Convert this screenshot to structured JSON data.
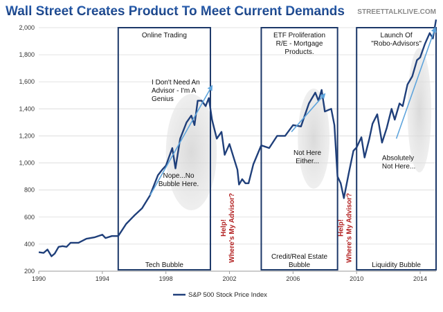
{
  "chart_data": {
    "type": "line",
    "title": "Wall Street Creates Product To Meet Current Demands",
    "source": "STREETTALKLIVE.COM",
    "legend": "S&P 500 Stock Price Index",
    "legend_position": "bottom",
    "grid": "horizontal",
    "xlim": [
      1990.0,
      2015.0
    ],
    "ylim": [
      200,
      2000
    ],
    "x_ticks": [
      1990,
      1994,
      1998,
      2002,
      2006,
      2010,
      2014
    ],
    "y_ticks": [
      200,
      400,
      600,
      800,
      1000,
      1200,
      1400,
      1600,
      1800,
      2000
    ],
    "y_tick_labels": [
      "200",
      "400",
      "600",
      "800",
      "1,000",
      "1,200",
      "1,400",
      "1,600",
      "1,800",
      "2,000"
    ],
    "series": [
      {
        "name": "S&P 500 Stock Price Index",
        "color": "#1f3f7a",
        "points": [
          [
            1990.0,
            340
          ],
          [
            1990.3,
            335
          ],
          [
            1990.55,
            360
          ],
          [
            1990.8,
            310
          ],
          [
            1991.0,
            330
          ],
          [
            1991.25,
            380
          ],
          [
            1991.5,
            385
          ],
          [
            1991.75,
            380
          ],
          [
            1992.0,
            410
          ],
          [
            1992.5,
            410
          ],
          [
            1993.0,
            440
          ],
          [
            1993.5,
            450
          ],
          [
            1994.0,
            470
          ],
          [
            1994.2,
            445
          ],
          [
            1994.6,
            460
          ],
          [
            1995.0,
            460
          ],
          [
            1995.5,
            550
          ],
          [
            1996.0,
            610
          ],
          [
            1996.5,
            665
          ],
          [
            1997.0,
            760
          ],
          [
            1997.5,
            910
          ],
          [
            1997.8,
            955
          ],
          [
            1998.0,
            980
          ],
          [
            1998.4,
            1110
          ],
          [
            1998.6,
            960
          ],
          [
            1998.9,
            1180
          ],
          [
            1999.3,
            1300
          ],
          [
            1999.6,
            1350
          ],
          [
            1999.8,
            1280
          ],
          [
            2000.0,
            1460
          ],
          [
            2000.25,
            1460
          ],
          [
            2000.5,
            1420
          ],
          [
            2000.7,
            1480
          ],
          [
            2000.9,
            1320
          ],
          [
            2001.2,
            1180
          ],
          [
            2001.5,
            1230
          ],
          [
            2001.7,
            1060
          ],
          [
            2002.0,
            1140
          ],
          [
            2002.5,
            950
          ],
          [
            2002.6,
            840
          ],
          [
            2002.8,
            880
          ],
          [
            2003.0,
            850
          ],
          [
            2003.2,
            850
          ],
          [
            2003.5,
            990
          ],
          [
            2004.0,
            1130
          ],
          [
            2004.5,
            1110
          ],
          [
            2005.0,
            1200
          ],
          [
            2005.5,
            1200
          ],
          [
            2006.0,
            1280
          ],
          [
            2006.5,
            1270
          ],
          [
            2007.0,
            1440
          ],
          [
            2007.4,
            1520
          ],
          [
            2007.6,
            1460
          ],
          [
            2007.8,
            1540
          ],
          [
            2008.0,
            1380
          ],
          [
            2008.4,
            1400
          ],
          [
            2008.6,
            1280
          ],
          [
            2008.8,
            900
          ],
          [
            2009.0,
            850
          ],
          [
            2009.2,
            740
          ],
          [
            2009.5,
            920
          ],
          [
            2009.8,
            1090
          ],
          [
            2010.0,
            1115
          ],
          [
            2010.3,
            1190
          ],
          [
            2010.5,
            1040
          ],
          [
            2010.8,
            1180
          ],
          [
            2011.0,
            1290
          ],
          [
            2011.3,
            1360
          ],
          [
            2011.6,
            1150
          ],
          [
            2011.9,
            1260
          ],
          [
            2012.2,
            1400
          ],
          [
            2012.4,
            1320
          ],
          [
            2012.7,
            1440
          ],
          [
            2012.9,
            1420
          ],
          [
            2013.2,
            1580
          ],
          [
            2013.5,
            1640
          ],
          [
            2013.8,
            1760
          ],
          [
            2014.0,
            1780
          ],
          [
            2014.3,
            1880
          ],
          [
            2014.6,
            1960
          ],
          [
            2014.8,
            1920
          ],
          [
            2015.0,
            2060
          ]
        ]
      }
    ],
    "trend_arrows": [
      {
        "from": [
          1997.0,
          760
        ],
        "to": [
          2000.9,
          1570
        ]
      },
      {
        "from": [
          2005.9,
          1230
        ],
        "to": [
          2008.0,
          1510
        ]
      },
      {
        "from": [
          2012.5,
          1180
        ],
        "to": [
          2014.95,
          2000
        ]
      }
    ],
    "highlight_ellipses": [
      {
        "center": [
          1999.6,
          1080
        ],
        "rx_years": 1.6,
        "ry_value": 430
      },
      {
        "center": [
          2007.3,
          1180
        ],
        "rx_years": 1.0,
        "ry_value": 370
      },
      {
        "center": [
          2013.95,
          1390
        ],
        "rx_years": 0.75,
        "ry_value": 460
      }
    ],
    "boxes": [
      {
        "x0": 1995.0,
        "x1": 2000.8,
        "y0": 210,
        "y1": 2000,
        "top_label": "Online Trading",
        "bottom_label": "Tech Bubble"
      },
      {
        "x0": 2004.0,
        "x1": 2008.8,
        "y0": 210,
        "y1": 2000,
        "top_label": "ETF Proliferation\nR/E - Mortgage\nProducts.",
        "bottom_label": "Credit/Real Estate\nBubble"
      },
      {
        "x0": 2010.0,
        "x1": 2015.0,
        "y0": 210,
        "y1": 2000,
        "top_label": "Launch Of\n\"Robo-Advisors\"",
        "bottom_label": "Liquidity Bubble"
      }
    ],
    "annotations": [
      {
        "id": "genius",
        "text": "I Don't Need An\nAdvisor - I'm A\nGenius",
        "anchor": "start",
        "x": 1997.1,
        "y": 1580
      },
      {
        "id": "nope",
        "text": "Nope...No\nBubble Here.",
        "anchor": "middle",
        "x": 1998.8,
        "y": 890
      },
      {
        "id": "not-here-either",
        "text": "Not Here\nEither...",
        "anchor": "middle",
        "x": 2006.9,
        "y": 1060
      },
      {
        "id": "absolutely-not",
        "text": "Absolutely\nNot Here...",
        "anchor": "start",
        "x": 2011.6,
        "y": 1020
      }
    ],
    "vertical_notes": [
      {
        "id": "help-1",
        "text": "Help!\nWhere's My Advisor?",
        "x": 2001.75,
        "y": 520
      },
      {
        "id": "help-2",
        "text": "Help!\nWhere's My Advisor?",
        "x": 2009.15,
        "y": 520
      }
    ]
  }
}
